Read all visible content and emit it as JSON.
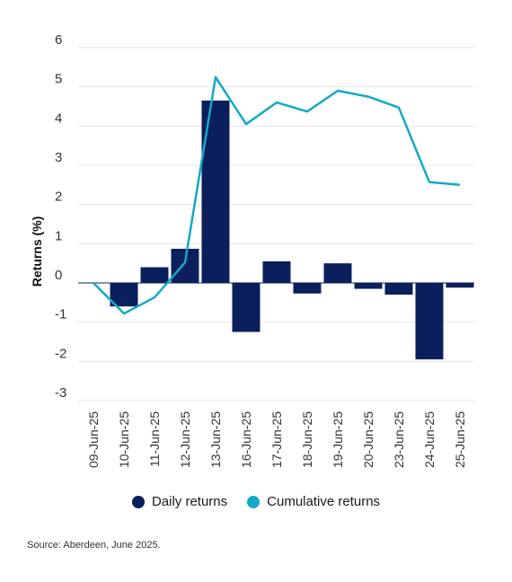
{
  "chart_data": {
    "type": "bar",
    "title": "",
    "xlabel": "",
    "ylabel": "Returns (%)",
    "ylim": [
      -3,
      6
    ],
    "yticks": [
      6,
      5,
      4,
      3,
      2,
      1,
      0,
      -1,
      -2,
      -3
    ],
    "grid": true,
    "legend_position": "bottom",
    "categories": [
      "09-Jun-25",
      "10-Jun-25",
      "11-Jun-25",
      "12-Jun-25",
      "13-Jun-25",
      "16-Jun-25",
      "17-Jun-25",
      "18-Jun-25",
      "19-Jun-25",
      "20-Jun-25",
      "23-Jun-25",
      "24-Jun-25",
      "25-Jun-25"
    ],
    "series": [
      {
        "name": "Daily returns",
        "type": "bar",
        "color": "#0b1f5c",
        "values": [
          0.0,
          -0.6,
          0.4,
          0.87,
          4.65,
          -1.25,
          0.55,
          -0.27,
          0.5,
          -0.15,
          -0.3,
          -1.95,
          -0.12
        ]
      },
      {
        "name": "Cumulative returns",
        "type": "line",
        "color": "#14a9c6",
        "values": [
          0.0,
          -0.78,
          -0.37,
          0.52,
          5.25,
          4.05,
          4.6,
          4.37,
          4.9,
          4.75,
          4.47,
          2.57,
          2.5
        ]
      }
    ]
  },
  "legend": {
    "daily_label": "Daily returns",
    "cumulative_label": "Cumulative returns"
  },
  "source": "Source: Aberdeen, June 2025."
}
